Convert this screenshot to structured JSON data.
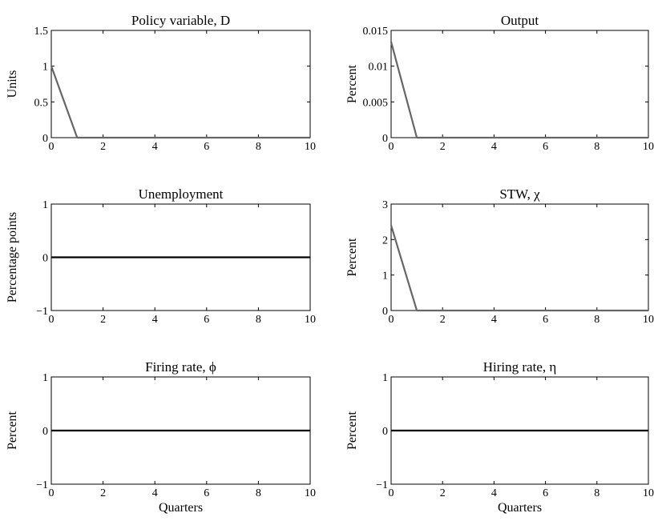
{
  "chart_data": [
    {
      "type": "line",
      "title": "Policy variable, D",
      "ylabel": "Units",
      "xlabel": "",
      "xlim": [
        0,
        10
      ],
      "ylim": [
        0,
        1.5
      ],
      "xticks": [
        "0",
        "2",
        "4",
        "6",
        "8",
        "10"
      ],
      "yticks": [
        "0",
        "0.5",
        "1",
        "1.5"
      ],
      "series": [
        {
          "color": "#666666",
          "x": [
            0,
            1,
            2,
            3,
            4,
            5,
            6,
            7,
            8,
            9,
            10
          ],
          "values": [
            1,
            0,
            0,
            0,
            0,
            0,
            0,
            0,
            0,
            0,
            0
          ]
        }
      ]
    },
    {
      "type": "line",
      "title": "Output",
      "ylabel": "Percent",
      "xlabel": "",
      "xlim": [
        0,
        10
      ],
      "ylim": [
        0,
        0.015
      ],
      "xticks": [
        "0",
        "2",
        "4",
        "6",
        "8",
        "10"
      ],
      "yticks": [
        "0",
        "0.005",
        "0.01",
        "0.015"
      ],
      "series": [
        {
          "color": "#666666",
          "x": [
            0,
            1,
            2,
            3,
            4,
            5,
            6,
            7,
            8,
            9,
            10
          ],
          "values": [
            0.0134,
            0,
            0,
            0,
            0,
            0,
            0,
            0,
            0,
            0,
            0
          ]
        }
      ]
    },
    {
      "type": "line",
      "title": "Unemployment",
      "ylabel": "Percentage points",
      "xlabel": "",
      "xlim": [
        0,
        10
      ],
      "ylim": [
        -1,
        1
      ],
      "xticks": [
        "0",
        "2",
        "4",
        "6",
        "8",
        "10"
      ],
      "yticks": [
        "−1",
        "0",
        "1"
      ],
      "series": [
        {
          "color": "#000000",
          "x": [
            0,
            1,
            2,
            3,
            4,
            5,
            6,
            7,
            8,
            9,
            10
          ],
          "values": [
            0,
            0,
            0,
            0,
            0,
            0,
            0,
            0,
            0,
            0,
            0
          ]
        }
      ]
    },
    {
      "type": "line",
      "title": "STW, χ",
      "ylabel": "Percent",
      "xlabel": "",
      "xlim": [
        0,
        10
      ],
      "ylim": [
        0,
        3
      ],
      "xticks": [
        "0",
        "2",
        "4",
        "6",
        "8",
        "10"
      ],
      "yticks": [
        "0",
        "1",
        "2",
        "3"
      ],
      "series": [
        {
          "color": "#666666",
          "x": [
            0,
            1,
            2,
            3,
            4,
            5,
            6,
            7,
            8,
            9,
            10
          ],
          "values": [
            2.4,
            0,
            0,
            0,
            0,
            0,
            0,
            0,
            0,
            0,
            0
          ]
        }
      ]
    },
    {
      "type": "line",
      "title": "Firing rate, ϕ",
      "ylabel": "Percent",
      "xlabel": "Quarters",
      "xlim": [
        0,
        10
      ],
      "ylim": [
        -1,
        1
      ],
      "xticks": [
        "0",
        "2",
        "4",
        "6",
        "8",
        "10"
      ],
      "yticks": [
        "−1",
        "0",
        "1"
      ],
      "series": [
        {
          "color": "#000000",
          "x": [
            0,
            1,
            2,
            3,
            4,
            5,
            6,
            7,
            8,
            9,
            10
          ],
          "values": [
            0,
            0,
            0,
            0,
            0,
            0,
            0,
            0,
            0,
            0,
            0
          ]
        }
      ]
    },
    {
      "type": "line",
      "title": "Hiring rate, η",
      "ylabel": "Percent",
      "xlabel": "Quarters",
      "xlim": [
        0,
        10
      ],
      "ylim": [
        -1,
        1
      ],
      "xticks": [
        "0",
        "2",
        "4",
        "6",
        "8",
        "10"
      ],
      "yticks": [
        "−1",
        "0",
        "1"
      ],
      "series": [
        {
          "color": "#000000",
          "x": [
            0,
            1,
            2,
            3,
            4,
            5,
            6,
            7,
            8,
            9,
            10
          ],
          "values": [
            0,
            0,
            0,
            0,
            0,
            0,
            0,
            0,
            0,
            0,
            0
          ]
        }
      ]
    }
  ]
}
